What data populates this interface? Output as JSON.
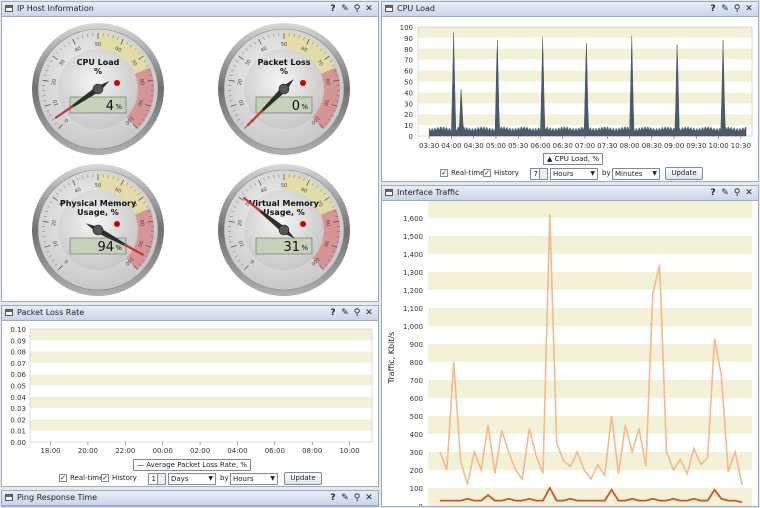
{
  "panels": {
    "ip_host": {
      "title": "IP Host Information"
    },
    "cpu": {
      "title": "CPU Load"
    },
    "packet_loss": {
      "title": "Packet Loss Rate"
    },
    "interface": {
      "title": "Interface Traffic"
    },
    "ping": {
      "title": "Ping Response Time"
    }
  },
  "gauges": [
    {
      "label1": "CPU Load",
      "label2": "%",
      "value": 4,
      "display": "4",
      "unit": "%"
    },
    {
      "label1": "Packet Loss",
      "label2": "%",
      "value": 0,
      "display": "0",
      "unit": "%"
    },
    {
      "label1": "Physical Memory",
      "label2": "Usage, %",
      "value": 94,
      "display": "94",
      "unit": "%"
    },
    {
      "label1": "Virtual Memory",
      "label2": "Usage, %",
      "value": 31,
      "display": "31",
      "unit": "%"
    }
  ],
  "gauge_ticks": [
    "0",
    "10",
    "20",
    "30",
    "40",
    "50",
    "60",
    "70",
    "80",
    "90",
    "100"
  ],
  "controls": {
    "realtime": "Real-time",
    "history": "History",
    "by": "by",
    "update": "Update",
    "cpu": {
      "count": "7",
      "unit": "Hours",
      "by_unit": "Minutes"
    },
    "loss": {
      "count": "1",
      "unit": "Days",
      "by_unit": "Hours"
    }
  },
  "colors": {
    "cpu_line": "#4a5a6a",
    "traffic_in": "#f5b98a",
    "traffic_out": "#d0522a",
    "grid_band": "#f3f2d8"
  },
  "chart_data": [
    {
      "type": "area",
      "name": "cpu-load-chart",
      "legend": "CPU Load, %",
      "ylim": [
        0,
        100
      ],
      "yticks": [
        0,
        10,
        20,
        30,
        40,
        50,
        60,
        70,
        80,
        90,
        100
      ],
      "xticks": [
        "03:30",
        "04:00",
        "04:30",
        "05:00",
        "05:30",
        "06:00",
        "06:30",
        "07:00",
        "07:30",
        "08:00",
        "08:30",
        "09:00",
        "09:30",
        "10:00",
        "10:30"
      ],
      "spikes": [
        [
          4.05,
          95
        ],
        [
          4.22,
          46
        ],
        [
          5.03,
          94
        ],
        [
          6.05,
          91
        ],
        [
          7.03,
          91
        ],
        [
          8.05,
          92
        ],
        [
          9.07,
          90
        ],
        [
          10.1,
          88
        ]
      ],
      "baseline": 4
    },
    {
      "type": "line",
      "name": "packet-loss-chart",
      "legend": "Average Packet Loss Rate, %",
      "ylim": [
        0,
        0.1
      ],
      "yticks": [
        "0.00",
        "0.01",
        "0.02",
        "0.03",
        "0.04",
        "0.05",
        "0.06",
        "0.07",
        "0.08",
        "0.09",
        "0.10"
      ],
      "xticks": [
        "18:00",
        "20:00",
        "22:00",
        "00:00",
        "02:00",
        "04:00",
        "06:00",
        "08:00",
        "10:00"
      ],
      "values": []
    },
    {
      "type": "line",
      "name": "interface-traffic-chart",
      "ylabel": "Traffic, Kbit/s",
      "ylim": [
        0,
        1650
      ],
      "yticks": [
        "0",
        "100",
        "200",
        "300",
        "400",
        "500",
        "600",
        "700",
        "800",
        "900",
        "1,000",
        "1,100",
        "1,200",
        "1,300",
        "1,400",
        "1,500",
        "1,600"
      ],
      "series": [
        {
          "values": [
            300,
            200,
            800,
            250,
            120,
            300,
            200,
            450,
            180,
            420,
            300,
            200,
            150,
            430,
            280,
            180,
            1620,
            350,
            250,
            220,
            300,
            200,
            150,
            230,
            170,
            500,
            180,
            450,
            300,
            430,
            220,
            1180,
            1340,
            300,
            200,
            260,
            180,
            320,
            230,
            270,
            930,
            720,
            190,
            300,
            120
          ]
        },
        {
          "values": [
            30,
            30,
            30,
            30,
            40,
            30,
            30,
            60,
            30,
            30,
            40,
            30,
            30,
            40,
            30,
            30,
            100,
            30,
            30,
            40,
            30,
            30,
            30,
            30,
            30,
            90,
            30,
            30,
            40,
            30,
            30,
            40,
            30,
            30,
            40,
            30,
            30,
            40,
            30,
            30,
            90,
            40,
            30,
            30,
            20
          ]
        }
      ]
    }
  ]
}
